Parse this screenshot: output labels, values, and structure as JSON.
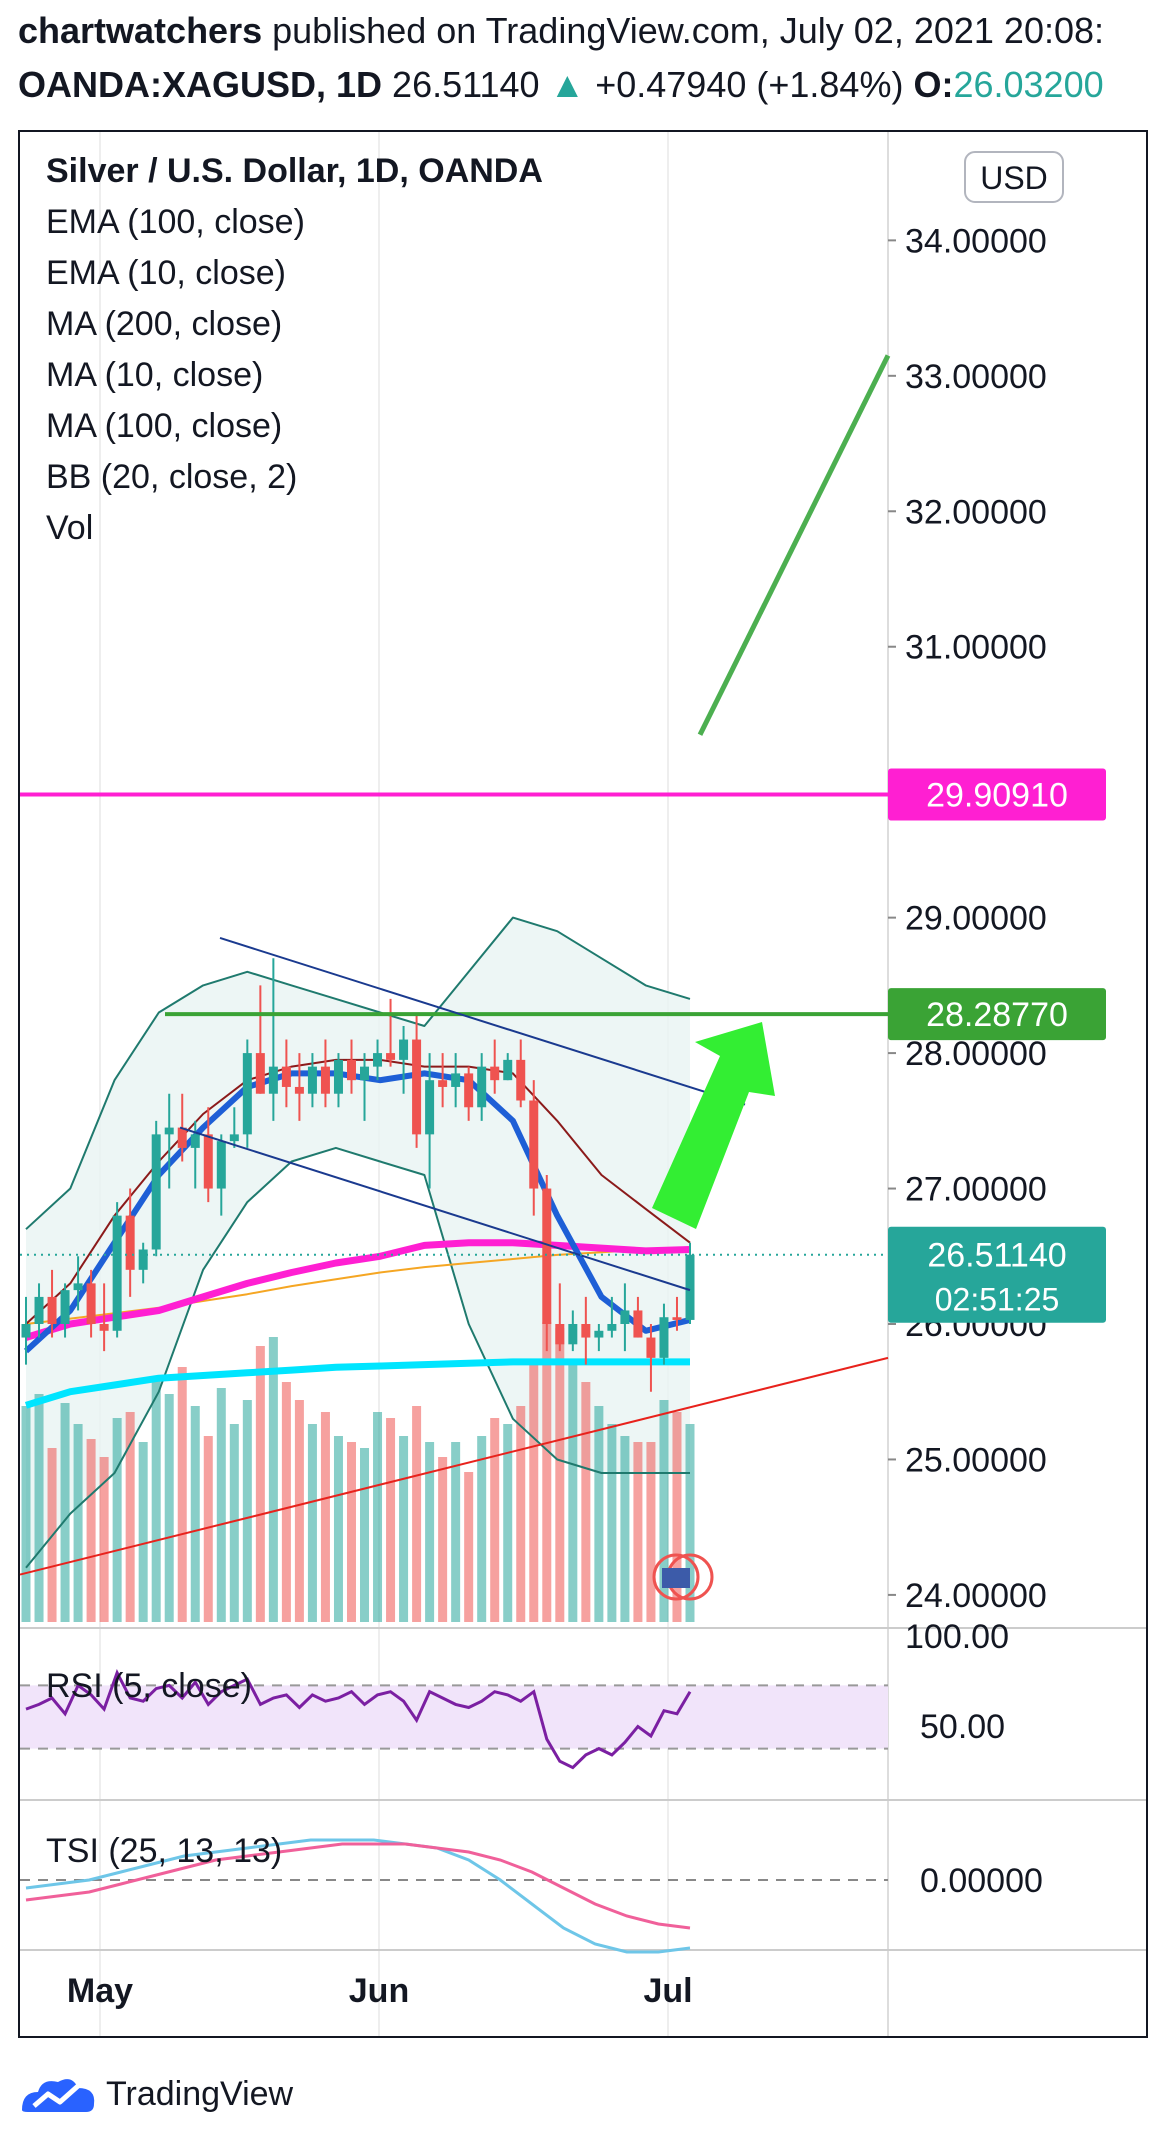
{
  "header": {
    "author": "chartwatchers",
    "published_text": " published on TradingView.com, July 02, 2021 20:08:",
    "symbol": "OANDA:XAGUSD, 1D",
    "price": "26.51140",
    "change": "+0.47940 (+1.84%)",
    "open_label": "O:",
    "open_value": "26.03200"
  },
  "currency": "USD",
  "legend": {
    "title": "Silver / U.S. Dollar, 1D, OANDA",
    "items": [
      "EMA (100, close)",
      "EMA (10, close)",
      "MA (200, close)",
      "MA (10, close)",
      "MA (100, close)",
      "BB (20, close, 2)",
      "Vol"
    ]
  },
  "colors": {
    "up": "#26a69a",
    "down": "#ef5350",
    "ema100": "#f5a623",
    "ema10": "#8b1a1a",
    "ma200": "#00e5ff",
    "ma10": "#1e5fd6",
    "ma100": "#ff1fd2",
    "bb": "#1f7a6e",
    "bb_fill": "#e8f4f2",
    "resistance": "#ff1fd2",
    "target_line": "#3aa335",
    "trend_green": "#4caf50",
    "arrow": "#33ee33",
    "support": "#e8221c",
    "channel": "#1a3a8f"
  },
  "chart_data": {
    "type": "candlestick",
    "symbol": "OANDA:XAGUSD",
    "interval": "1D",
    "y_range": [
      23.8,
      34.8
    ],
    "y_ticks": [
      "34.00000",
      "33.00000",
      "32.00000",
      "31.00000",
      "29.00000",
      "28.00000",
      "27.00000",
      "26.00000",
      "25.00000",
      "24.00000"
    ],
    "x_labels": [
      "May",
      "Jun",
      "Jul"
    ],
    "levels": {
      "resistance": {
        "label": "29.90910",
        "value": 29.9091
      },
      "target": {
        "label": "28.28770",
        "value": 28.2877
      },
      "last_price": {
        "label": "26.51140",
        "countdown": "02:51:25",
        "value": 26.5114
      }
    },
    "candles": [
      {
        "date": "2021-04-22",
        "o": 25.9,
        "h": 26.2,
        "l": 25.7,
        "c": 26.0
      },
      {
        "date": "2021-04-23",
        "o": 26.0,
        "h": 26.3,
        "l": 25.9,
        "c": 26.2
      },
      {
        "date": "2021-04-26",
        "o": 26.2,
        "h": 26.4,
        "l": 25.9,
        "c": 26.0
      },
      {
        "date": "2021-04-27",
        "o": 26.0,
        "h": 26.3,
        "l": 25.9,
        "c": 26.25
      },
      {
        "date": "2021-04-28",
        "o": 26.25,
        "h": 26.5,
        "l": 26.1,
        "c": 26.3
      },
      {
        "date": "2021-04-29",
        "o": 26.3,
        "h": 26.4,
        "l": 25.9,
        "c": 26.0
      },
      {
        "date": "2021-04-30",
        "o": 26.0,
        "h": 26.3,
        "l": 25.8,
        "c": 25.95
      },
      {
        "date": "2021-05-03",
        "o": 25.95,
        "h": 26.9,
        "l": 25.9,
        "c": 26.8
      },
      {
        "date": "2021-05-04",
        "o": 26.8,
        "h": 27.0,
        "l": 26.2,
        "c": 26.4
      },
      {
        "date": "2021-05-05",
        "o": 26.4,
        "h": 26.6,
        "l": 26.3,
        "c": 26.55
      },
      {
        "date": "2021-05-06",
        "o": 26.55,
        "h": 27.5,
        "l": 26.5,
        "c": 27.4
      },
      {
        "date": "2021-05-07",
        "o": 27.4,
        "h": 27.7,
        "l": 27.0,
        "c": 27.45
      },
      {
        "date": "2021-05-10",
        "o": 27.45,
        "h": 27.7,
        "l": 27.2,
        "c": 27.3
      },
      {
        "date": "2021-05-11",
        "o": 27.3,
        "h": 27.5,
        "l": 27.0,
        "c": 27.4
      },
      {
        "date": "2021-05-12",
        "o": 27.4,
        "h": 27.6,
        "l": 26.9,
        "c": 27.0
      },
      {
        "date": "2021-05-13",
        "o": 27.0,
        "h": 27.4,
        "l": 26.8,
        "c": 27.35
      },
      {
        "date": "2021-05-14",
        "o": 27.35,
        "h": 27.6,
        "l": 27.3,
        "c": 27.4
      },
      {
        "date": "2021-05-17",
        "o": 27.4,
        "h": 28.1,
        "l": 27.3,
        "c": 28.0
      },
      {
        "date": "2021-05-18",
        "o": 28.0,
        "h": 28.5,
        "l": 27.7,
        "c": 27.7
      },
      {
        "date": "2021-05-19",
        "o": 27.7,
        "h": 28.7,
        "l": 27.5,
        "c": 27.9
      },
      {
        "date": "2021-05-20",
        "o": 27.9,
        "h": 28.1,
        "l": 27.6,
        "c": 27.75
      },
      {
        "date": "2021-05-21",
        "o": 27.75,
        "h": 28.0,
        "l": 27.5,
        "c": 27.7
      },
      {
        "date": "2021-05-24",
        "o": 27.7,
        "h": 28.0,
        "l": 27.6,
        "c": 27.9
      },
      {
        "date": "2021-05-25",
        "o": 27.9,
        "h": 28.1,
        "l": 27.6,
        "c": 27.7
      },
      {
        "date": "2021-05-26",
        "o": 27.7,
        "h": 28.0,
        "l": 27.6,
        "c": 27.95
      },
      {
        "date": "2021-05-27",
        "o": 27.95,
        "h": 28.1,
        "l": 27.7,
        "c": 27.8
      },
      {
        "date": "2021-05-28",
        "o": 27.8,
        "h": 28.0,
        "l": 27.5,
        "c": 27.9
      },
      {
        "date": "2021-05-31",
        "o": 27.9,
        "h": 28.1,
        "l": 27.8,
        "c": 28.0
      },
      {
        "date": "2021-06-01",
        "o": 28.0,
        "h": 28.4,
        "l": 27.9,
        "c": 27.95
      },
      {
        "date": "2021-06-02",
        "o": 27.95,
        "h": 28.2,
        "l": 27.7,
        "c": 28.1
      },
      {
        "date": "2021-06-03",
        "o": 28.1,
        "h": 28.3,
        "l": 27.3,
        "c": 27.4
      },
      {
        "date": "2021-06-04",
        "o": 27.4,
        "h": 28.0,
        "l": 27.0,
        "c": 27.8
      },
      {
        "date": "2021-06-07",
        "o": 27.8,
        "h": 28.0,
        "l": 27.6,
        "c": 27.75
      },
      {
        "date": "2021-06-08",
        "o": 27.75,
        "h": 28.0,
        "l": 27.6,
        "c": 27.85
      },
      {
        "date": "2021-06-09",
        "o": 27.85,
        "h": 27.9,
        "l": 27.5,
        "c": 27.6
      },
      {
        "date": "2021-06-10",
        "o": 27.6,
        "h": 28.0,
        "l": 27.5,
        "c": 27.9
      },
      {
        "date": "2021-06-11",
        "o": 27.9,
        "h": 28.1,
        "l": 27.7,
        "c": 27.8
      },
      {
        "date": "2021-06-14",
        "o": 27.8,
        "h": 28.0,
        "l": 27.8,
        "c": 27.95
      },
      {
        "date": "2021-06-15",
        "o": 27.95,
        "h": 28.1,
        "l": 27.6,
        "c": 27.65
      },
      {
        "date": "2021-06-16",
        "o": 27.65,
        "h": 27.8,
        "l": 26.8,
        "c": 27.0
      },
      {
        "date": "2021-06-17",
        "o": 27.0,
        "h": 27.1,
        "l": 25.8,
        "c": 26.0
      },
      {
        "date": "2021-06-18",
        "o": 26.0,
        "h": 26.3,
        "l": 25.8,
        "c": 25.85
      },
      {
        "date": "2021-06-21",
        "o": 25.85,
        "h": 26.1,
        "l": 25.8,
        "c": 26.0
      },
      {
        "date": "2021-06-22",
        "o": 26.0,
        "h": 26.2,
        "l": 25.7,
        "c": 25.9
      },
      {
        "date": "2021-06-23",
        "o": 25.9,
        "h": 26.0,
        "l": 25.8,
        "c": 25.95
      },
      {
        "date": "2021-06-24",
        "o": 25.95,
        "h": 26.2,
        "l": 25.9,
        "c": 26.0
      },
      {
        "date": "2021-06-25",
        "o": 26.0,
        "h": 26.3,
        "l": 25.8,
        "c": 26.1
      },
      {
        "date": "2021-06-28",
        "o": 26.1,
        "h": 26.2,
        "l": 25.9,
        "c": 25.9
      },
      {
        "date": "2021-06-29",
        "o": 25.9,
        "h": 26.0,
        "l": 25.5,
        "c": 25.75
      },
      {
        "date": "2021-06-30",
        "o": 25.75,
        "h": 26.15,
        "l": 25.7,
        "c": 26.05
      },
      {
        "date": "2021-07-01",
        "o": 26.05,
        "h": 26.2,
        "l": 25.95,
        "c": 26.03
      },
      {
        "date": "2021-07-02",
        "o": 26.03,
        "h": 26.6,
        "l": 26.0,
        "c": 26.5114
      }
    ],
    "indicators": {
      "ema100": [
        26.0,
        26.04,
        26.08,
        26.12,
        26.17,
        26.22,
        26.28,
        26.33,
        26.38,
        26.42,
        26.45,
        26.48,
        26.51,
        26.53,
        26.55,
        26.55
      ],
      "ema10": [
        26.0,
        26.3,
        26.8,
        27.2,
        27.55,
        27.8,
        27.9,
        27.95,
        27.95,
        27.9,
        27.9,
        27.85,
        27.5,
        27.1,
        26.85,
        26.6
      ],
      "ma200": [
        25.4,
        25.5,
        25.55,
        25.6,
        25.62,
        25.64,
        25.66,
        25.68,
        25.69,
        25.7,
        25.71,
        25.72,
        25.72,
        25.72,
        25.72,
        25.72
      ],
      "ma10": [
        25.8,
        26.1,
        26.6,
        27.1,
        27.45,
        27.75,
        27.85,
        27.85,
        27.8,
        27.85,
        27.8,
        27.5,
        26.8,
        26.2,
        25.95,
        26.03
      ],
      "ma100": [
        25.9,
        26.0,
        26.05,
        26.1,
        26.2,
        26.3,
        26.38,
        26.45,
        26.5,
        26.58,
        26.6,
        26.6,
        26.58,
        26.56,
        26.54,
        26.55
      ],
      "bb_upper": [
        26.7,
        27.0,
        27.8,
        28.3,
        28.5,
        28.6,
        28.5,
        28.4,
        28.3,
        28.2,
        28.6,
        29.0,
        28.9,
        28.7,
        28.5,
        28.4
      ],
      "bb_lower": [
        24.2,
        24.6,
        24.9,
        25.5,
        26.4,
        26.9,
        27.2,
        27.3,
        27.2,
        27.1,
        26.0,
        25.3,
        25.0,
        24.9,
        24.9,
        24.9
      ]
    },
    "volume_relative": [
      0.72,
      0.76,
      0.58,
      0.73,
      0.66,
      0.61,
      0.55,
      0.68,
      0.7,
      0.6,
      0.82,
      0.76,
      0.85,
      0.72,
      0.62,
      0.78,
      0.66,
      0.74,
      0.92,
      0.95,
      0.8,
      0.74,
      0.66,
      0.7,
      0.62,
      0.6,
      0.58,
      0.7,
      0.68,
      0.62,
      0.72,
      0.6,
      0.55,
      0.6,
      0.5,
      0.62,
      0.68,
      0.66,
      0.72,
      0.86,
      1.0,
      0.98,
      0.86,
      0.8,
      0.72,
      0.66,
      0.62,
      0.6,
      0.6,
      0.74,
      0.7,
      0.66
    ],
    "rsi": {
      "label": "RSI (5, close)",
      "range": [
        0,
        100
      ],
      "band": [
        30,
        70
      ],
      "tick_label": "50.00",
      "top_tick_label": "100.00",
      "values": [
        55,
        58,
        62,
        52,
        70,
        64,
        55,
        78,
        62,
        60,
        68,
        70,
        62,
        72,
        58,
        66,
        70,
        74,
        58,
        62,
        64,
        56,
        64,
        60,
        62,
        66,
        58,
        64,
        66,
        60,
        48,
        66,
        62,
        58,
        56,
        60,
        66,
        64,
        60,
        66,
        36,
        22,
        18,
        26,
        30,
        26,
        34,
        44,
        38,
        54,
        52,
        66
      ]
    },
    "tsi": {
      "label": "TSI (25, 13, 13)",
      "tick_label": "0.00000",
      "tsi": [
        -2,
        -1,
        0,
        2,
        4,
        6,
        7,
        8,
        9,
        10,
        10,
        10,
        9,
        8,
        5,
        0,
        -6,
        -12,
        -16,
        -18,
        -18,
        -17
      ],
      "signal": [
        -5,
        -4,
        -3,
        -1,
        1,
        3,
        5,
        6,
        7,
        8,
        9,
        9,
        9,
        8,
        7,
        5,
        2,
        -2,
        -6,
        -9,
        -11,
        -12
      ]
    }
  },
  "footer": {
    "brand": "TradingView"
  }
}
